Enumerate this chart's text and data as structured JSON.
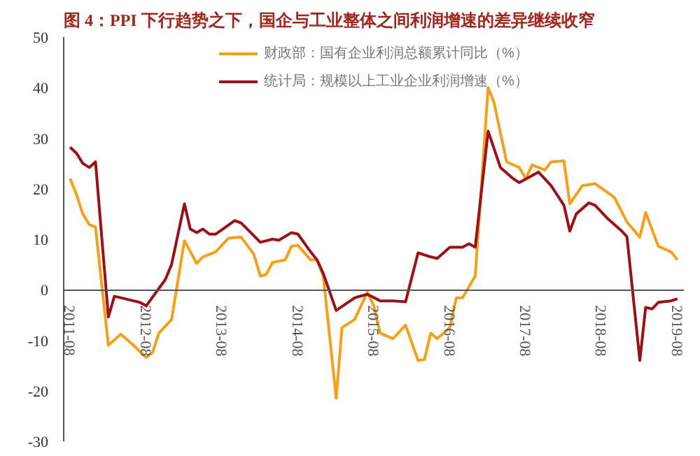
{
  "chart_data": {
    "type": "line",
    "title": "图 4：PPI 下行趋势之下，国企与工业整体之间利润增速的差异继续收窄",
    "xlim": [
      "2011-07",
      "2019-09"
    ],
    "xticks": [
      "2011-08",
      "2012-08",
      "2013-08",
      "2014-08",
      "2015-08",
      "2016-08",
      "2017-08",
      "2018-08",
      "2019-08"
    ],
    "ylim": [
      -30,
      50
    ],
    "yticks": [
      -30,
      -20,
      -10,
      0,
      10,
      20,
      30,
      40,
      50
    ],
    "grid": false,
    "legend": "top",
    "series": [
      {
        "name": "财政部：国有企业利润总额累计同比（%）",
        "color": "#f5a01a",
        "x": [
          "2011-08",
          "2011-09",
          "2011-10",
          "2011-11",
          "2011-12",
          "2012-02",
          "2012-04",
          "2012-06",
          "2012-08",
          "2012-09",
          "2012-10",
          "2012-12",
          "2013-02",
          "2013-04",
          "2013-05",
          "2013-07",
          "2013-09",
          "2013-11",
          "2014-01",
          "2014-02",
          "2014-03",
          "2014-04",
          "2014-06",
          "2014-07",
          "2014-08",
          "2014-10",
          "2014-11",
          "2014-12",
          "2015-02",
          "2015-03",
          "2015-05",
          "2015-07",
          "2015-08",
          "2015-09",
          "2015-11",
          "2016-01",
          "2016-03",
          "2016-04",
          "2016-05",
          "2016-06",
          "2016-08",
          "2016-09",
          "2016-10",
          "2016-12",
          "2017-02",
          "2017-03",
          "2017-05",
          "2017-07",
          "2017-08",
          "2017-09",
          "2017-11",
          "2017-12",
          "2018-02",
          "2018-03",
          "2018-05",
          "2018-07",
          "2018-10",
          "2018-12",
          "2019-02",
          "2019-03",
          "2019-05",
          "2019-07",
          "2019-08"
        ],
        "values": [
          22,
          18.8,
          15,
          12.9,
          12.4,
          -11,
          -8.8,
          -11,
          -13.4,
          -12.4,
          -8.6,
          -5.9,
          9.7,
          5.2,
          6.5,
          7.5,
          10.2,
          10.4,
          7,
          2.7,
          3,
          5.4,
          5.9,
          8.6,
          8.8,
          5.9,
          5.9,
          2.7,
          -21.5,
          -7.5,
          -5.9,
          -0.5,
          -3.2,
          -8.6,
          -9.7,
          -7,
          -14,
          -13.8,
          -8.6,
          -9.7,
          -7.5,
          -1.6,
          -1.6,
          2.7,
          40,
          37.1,
          25.3,
          24.2,
          22,
          24.7,
          23.7,
          25.3,
          25.5,
          17,
          20.6,
          21,
          18.3,
          13.4,
          10.4,
          15.3,
          8.6,
          7.5,
          5.9
        ]
      },
      {
        "name": "统计局：规模以上工业企业利润增速（%）",
        "color": "#9b1118",
        "x": [
          "2011-08",
          "2011-09",
          "2011-10",
          "2011-11",
          "2011-12",
          "2012-02",
          "2012-03",
          "2012-06",
          "2012-07",
          "2012-08",
          "2012-11",
          "2012-12",
          "2013-02",
          "2013-03",
          "2013-04",
          "2013-05",
          "2013-06",
          "2013-07",
          "2013-10",
          "2013-11",
          "2014-02",
          "2014-04",
          "2014-05",
          "2014-07",
          "2014-08",
          "2014-10",
          "2014-11",
          "2014-12",
          "2015-02",
          "2015-05",
          "2015-07",
          "2015-09",
          "2015-11",
          "2016-01",
          "2016-03",
          "2016-05",
          "2016-06",
          "2016-08",
          "2016-10",
          "2016-11",
          "2016-12",
          "2017-02",
          "2017-04",
          "2017-06",
          "2017-07",
          "2017-09",
          "2017-10",
          "2017-12",
          "2018-02",
          "2018-03",
          "2018-04",
          "2018-06",
          "2018-07",
          "2018-09",
          "2018-11",
          "2018-12",
          "2019-02",
          "2019-03",
          "2019-04",
          "2019-05",
          "2019-07",
          "2019-08"
        ],
        "values": [
          28.2,
          27,
          25,
          24.2,
          25.3,
          -5.4,
          -1.3,
          -2.2,
          -2.5,
          -3.2,
          2,
          5,
          17,
          12,
          11.3,
          12,
          11,
          11,
          13.7,
          13.2,
          9.4,
          10,
          9.8,
          11.3,
          11,
          7.5,
          5.9,
          3.2,
          -4.1,
          -1.6,
          -0.9,
          -2.2,
          -2.2,
          -2.4,
          7.3,
          6.5,
          6.2,
          8.4,
          8.4,
          9.1,
          8.4,
          31.4,
          24.2,
          22,
          21.2,
          22.6,
          23.3,
          20.6,
          16.7,
          11.6,
          15,
          17.2,
          16.7,
          14,
          11.8,
          10.5,
          -14,
          -3.5,
          -3.8,
          -2.5,
          -2.2,
          -1.8
        ]
      }
    ]
  }
}
